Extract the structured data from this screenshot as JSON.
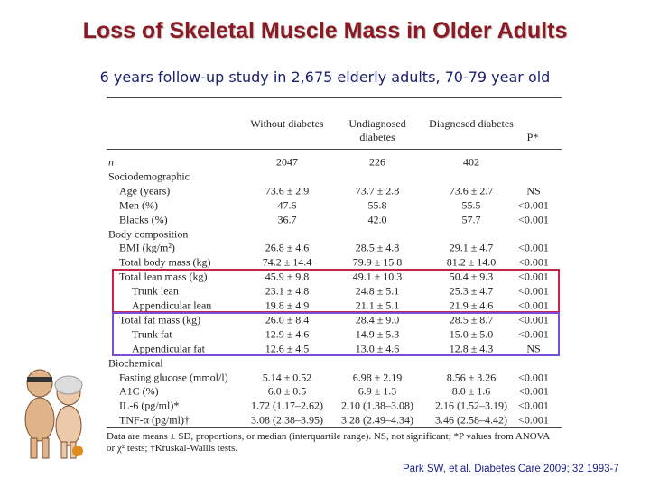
{
  "header": {
    "title": "Loss of Skeletal Muscle Mass in Older Adults",
    "subtitle": "6 years follow-up study in 2,675 elderly adults, 70-79 year old"
  },
  "table": {
    "columns": [
      "Without diabetes",
      "Undiagnosed diabetes",
      "Diagnosed diabetes",
      "P*"
    ],
    "rows": [
      {
        "label": "n",
        "values": [
          "2047",
          "226",
          "402"
        ]
      },
      {
        "label": "Sociodemographic"
      },
      {
        "label": "Age (years)",
        "values": [
          "73.6 ± 2.9",
          "73.7 ± 2.8",
          "73.6 ± 2.7",
          "NS"
        ]
      },
      {
        "label": "Men (%)",
        "values": [
          "47.6",
          "55.8",
          "55.5",
          "<0.001"
        ]
      },
      {
        "label": "Blacks (%)",
        "values": [
          "36.7",
          "42.0",
          "57.7",
          "<0.001"
        ]
      },
      {
        "label": "Body composition"
      },
      {
        "label": "BMI (kg/m²)",
        "values": [
          "26.8 ± 4.6",
          "28.5 ± 4.8",
          "29.1 ± 4.7",
          "<0.001"
        ]
      },
      {
        "label": "Total body mass (kg)",
        "values": [
          "74.2 ± 14.4",
          "79.9 ± 15.8",
          "81.2 ± 14.0",
          "<0.001"
        ]
      },
      {
        "label": "Total lean mass (kg)",
        "values": [
          "45.9 ± 9.8",
          "49.1 ± 10.3",
          "50.4 ± 9.3",
          "<0.001"
        ]
      },
      {
        "label": "Trunk lean",
        "values": [
          "23.1 ± 4.8",
          "24.8 ± 5.1",
          "25.3 ± 4.7",
          "<0.001"
        ]
      },
      {
        "label": "Appendicular lean",
        "values": [
          "19.8 ± 4.9",
          "21.1 ± 5.1",
          "21.9 ± 4.6",
          "<0.001"
        ]
      },
      {
        "label": "Total fat mass (kg)",
        "values": [
          "26.0 ± 8.4",
          "28.4 ± 9.0",
          "28.5 ± 8.7",
          "<0.001"
        ]
      },
      {
        "label": "Trunk fat",
        "values": [
          "12.9 ± 4.6",
          "14.9 ± 5.3",
          "15.0 ± 5.0",
          "<0.001"
        ]
      },
      {
        "label": "Appendicular fat",
        "values": [
          "12.6 ± 4.5",
          "13.0 ± 4.6",
          "12.8 ± 4.3",
          "NS"
        ]
      },
      {
        "label": "Biochemical"
      },
      {
        "label": "Fasting glucose (mmol/l)",
        "values": [
          "5.14 ± 0.52",
          "6.98 ± 2.19",
          "8.56 ± 3.26",
          "<0.001"
        ]
      },
      {
        "label": "A1C (%)",
        "values": [
          "6.0 ± 0.5",
          "6.9 ± 1.3",
          "8.0 ± 1.6",
          "<0.001"
        ]
      },
      {
        "label": "IL-6 (pg/ml)*",
        "values": [
          "1.72 (1.17–2.62)",
          "2.10 (1.38–3.08)",
          "2.16 (1.52–3.19)",
          "<0.001"
        ]
      },
      {
        "label": "TNF-α (pg/ml)†",
        "values": [
          "3.08 (2.38–3.95)",
          "3.28 (2.49–4.34)",
          "3.46 (2.58–4.42)",
          "<0.001"
        ]
      }
    ],
    "footnote": "Data are means ± SD, proportions, or median (interquartile range). NS, not significant; *P values from ANOVA or χ² tests; †Kruskal-Wallis tests."
  },
  "citation": "Park SW, et al. Diabetes Care 2009; 32 1993-7"
}
